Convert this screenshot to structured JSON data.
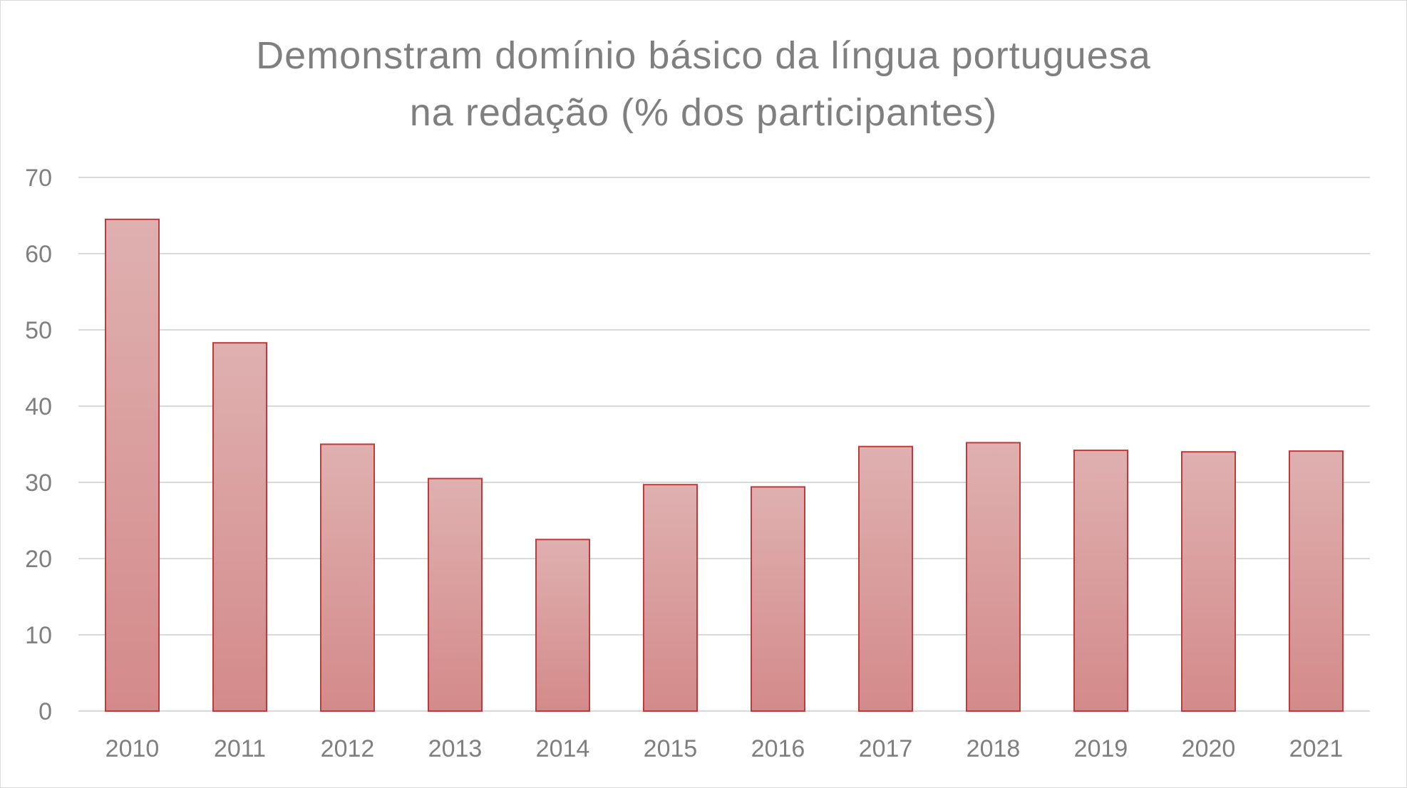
{
  "chart_data": {
    "type": "bar",
    "title_lines": [
      "Demonstram domínio básico da língua portuguesa",
      "na redação (% dos participantes)"
    ],
    "categories": [
      "2010",
      "2011",
      "2012",
      "2013",
      "2014",
      "2015",
      "2016",
      "2017",
      "2018",
      "2019",
      "2020",
      "2021"
    ],
    "values": [
      64.5,
      48.3,
      35.0,
      30.5,
      22.5,
      29.7,
      29.4,
      34.7,
      35.2,
      34.2,
      34.0,
      34.1
    ],
    "ylim": [
      0,
      70
    ],
    "yticks": [
      0,
      10,
      20,
      30,
      40,
      50,
      60,
      70
    ],
    "xlabel": "",
    "ylabel": "",
    "grid": true,
    "legend": "none",
    "colors": {
      "bar_fill_top": "#dfb0b0",
      "bar_fill_bottom": "#d48a8a",
      "bar_stroke": "#c0393b",
      "gridline": "#d9d9d9",
      "text": "#7f7f7f"
    }
  }
}
